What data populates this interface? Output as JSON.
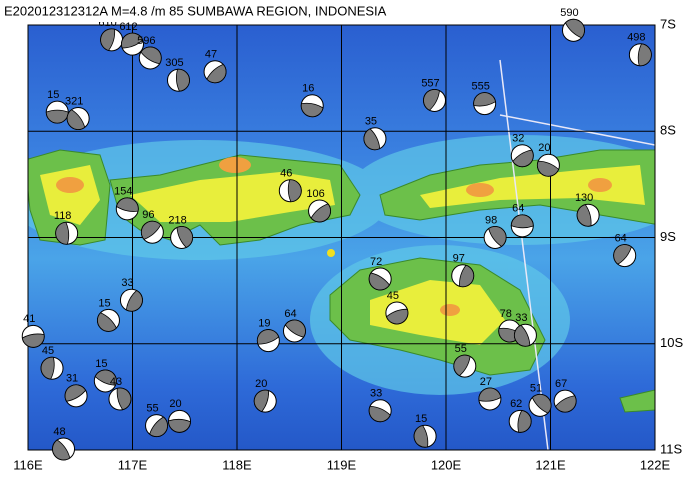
{
  "map": {
    "title": "E202012312312A M=4.8 /m 85 SUMBAWA REGION, INDONESIA",
    "xlim": [
      116,
      122
    ],
    "ylim": [
      -11,
      -7
    ],
    "xticks": [
      {
        "value": 116,
        "label": "116E"
      },
      {
        "value": 117,
        "label": "117E"
      },
      {
        "value": 118,
        "label": "118E"
      },
      {
        "value": 119,
        "label": "119E"
      },
      {
        "value": 120,
        "label": "120E"
      },
      {
        "value": 121,
        "label": "121E"
      },
      {
        "value": 122,
        "label": "122E"
      }
    ],
    "yticks": [
      {
        "value": -7,
        "label": "7S"
      },
      {
        "value": -8,
        "label": "8S"
      },
      {
        "value": -9,
        "label": "9S"
      },
      {
        "value": -10,
        "label": "10S"
      },
      {
        "value": -11,
        "label": "11S"
      }
    ],
    "grid": true,
    "events": [
      {
        "lon": 116.28,
        "lat": -7.82,
        "depth": 15
      },
      {
        "lon": 116.48,
        "lat": -7.88,
        "depth": 321
      },
      {
        "lon": 116.8,
        "lat": -7.14,
        "depth": 610
      },
      {
        "lon": 117.0,
        "lat": -7.18,
        "depth": 612
      },
      {
        "lon": 117.17,
        "lat": -7.31,
        "depth": 596
      },
      {
        "lon": 117.44,
        "lat": -7.52,
        "depth": 305
      },
      {
        "lon": 117.79,
        "lat": -7.44,
        "depth": 47
      },
      {
        "lon": 118.72,
        "lat": -7.76,
        "depth": 16
      },
      {
        "lon": 119.32,
        "lat": -8.07,
        "depth": 35
      },
      {
        "lon": 119.89,
        "lat": -7.71,
        "depth": 557
      },
      {
        "lon": 120.37,
        "lat": -7.74,
        "depth": 555
      },
      {
        "lon": 121.22,
        "lat": -7.05,
        "depth": 590
      },
      {
        "lon": 121.86,
        "lat": -7.28,
        "depth": 498
      },
      {
        "lon": 120.73,
        "lat": -8.23,
        "depth": 32
      },
      {
        "lon": 120.98,
        "lat": -8.32,
        "depth": 20
      },
      {
        "lon": 121.36,
        "lat": -8.79,
        "depth": 130
      },
      {
        "lon": 121.71,
        "lat": -9.17,
        "depth": 64
      },
      {
        "lon": 120.73,
        "lat": -8.89,
        "depth": 64
      },
      {
        "lon": 120.47,
        "lat": -9.0,
        "depth": 98
      },
      {
        "lon": 120.16,
        "lat": -9.36,
        "depth": 97
      },
      {
        "lon": 119.53,
        "lat": -9.71,
        "depth": 45
      },
      {
        "lon": 119.37,
        "lat": -9.39,
        "depth": 72
      },
      {
        "lon": 116.37,
        "lat": -8.96,
        "depth": 118
      },
      {
        "lon": 117.19,
        "lat": -8.95,
        "depth": 96
      },
      {
        "lon": 116.95,
        "lat": -8.73,
        "depth": 154
      },
      {
        "lon": 117.47,
        "lat": -9.0,
        "depth": 218
      },
      {
        "lon": 116.99,
        "lat": -9.59,
        "depth": 33
      },
      {
        "lon": 116.05,
        "lat": -9.93,
        "depth": 41
      },
      {
        "lon": 116.77,
        "lat": -9.78,
        "depth": 15
      },
      {
        "lon": 116.23,
        "lat": -10.23,
        "depth": 45
      },
      {
        "lon": 116.46,
        "lat": -10.49,
        "depth": 31
      },
      {
        "lon": 116.74,
        "lat": -10.35,
        "depth": 15
      },
      {
        "lon": 116.88,
        "lat": -10.52,
        "depth": 43
      },
      {
        "lon": 117.23,
        "lat": -10.77,
        "depth": 55
      },
      {
        "lon": 117.45,
        "lat": -10.73,
        "depth": 20
      },
      {
        "lon": 116.34,
        "lat": -10.99,
        "depth": 48
      },
      {
        "lon": 118.27,
        "lat": -10.54,
        "depth": 20
      },
      {
        "lon": 118.3,
        "lat": -9.97,
        "depth": 19
      },
      {
        "lon": 118.55,
        "lat": -9.88,
        "depth": 64
      },
      {
        "lon": 118.51,
        "lat": -8.56,
        "depth": 46
      },
      {
        "lon": 118.79,
        "lat": -8.75,
        "depth": 106
      },
      {
        "lon": 120.61,
        "lat": -9.88,
        "depth": 78
      },
      {
        "lon": 120.76,
        "lat": -9.92,
        "depth": 33
      },
      {
        "lon": 120.18,
        "lat": -10.21,
        "depth": 55
      },
      {
        "lon": 120.42,
        "lat": -10.52,
        "depth": 27
      },
      {
        "lon": 120.9,
        "lat": -10.58,
        "depth": 51
      },
      {
        "lon": 120.71,
        "lat": -10.73,
        "depth": 62
      },
      {
        "lon": 121.14,
        "lat": -10.54,
        "depth": 67
      },
      {
        "lon": 119.37,
        "lat": -10.63,
        "depth": 33
      },
      {
        "lon": 119.8,
        "lat": -10.87,
        "depth": 15
      }
    ]
  }
}
